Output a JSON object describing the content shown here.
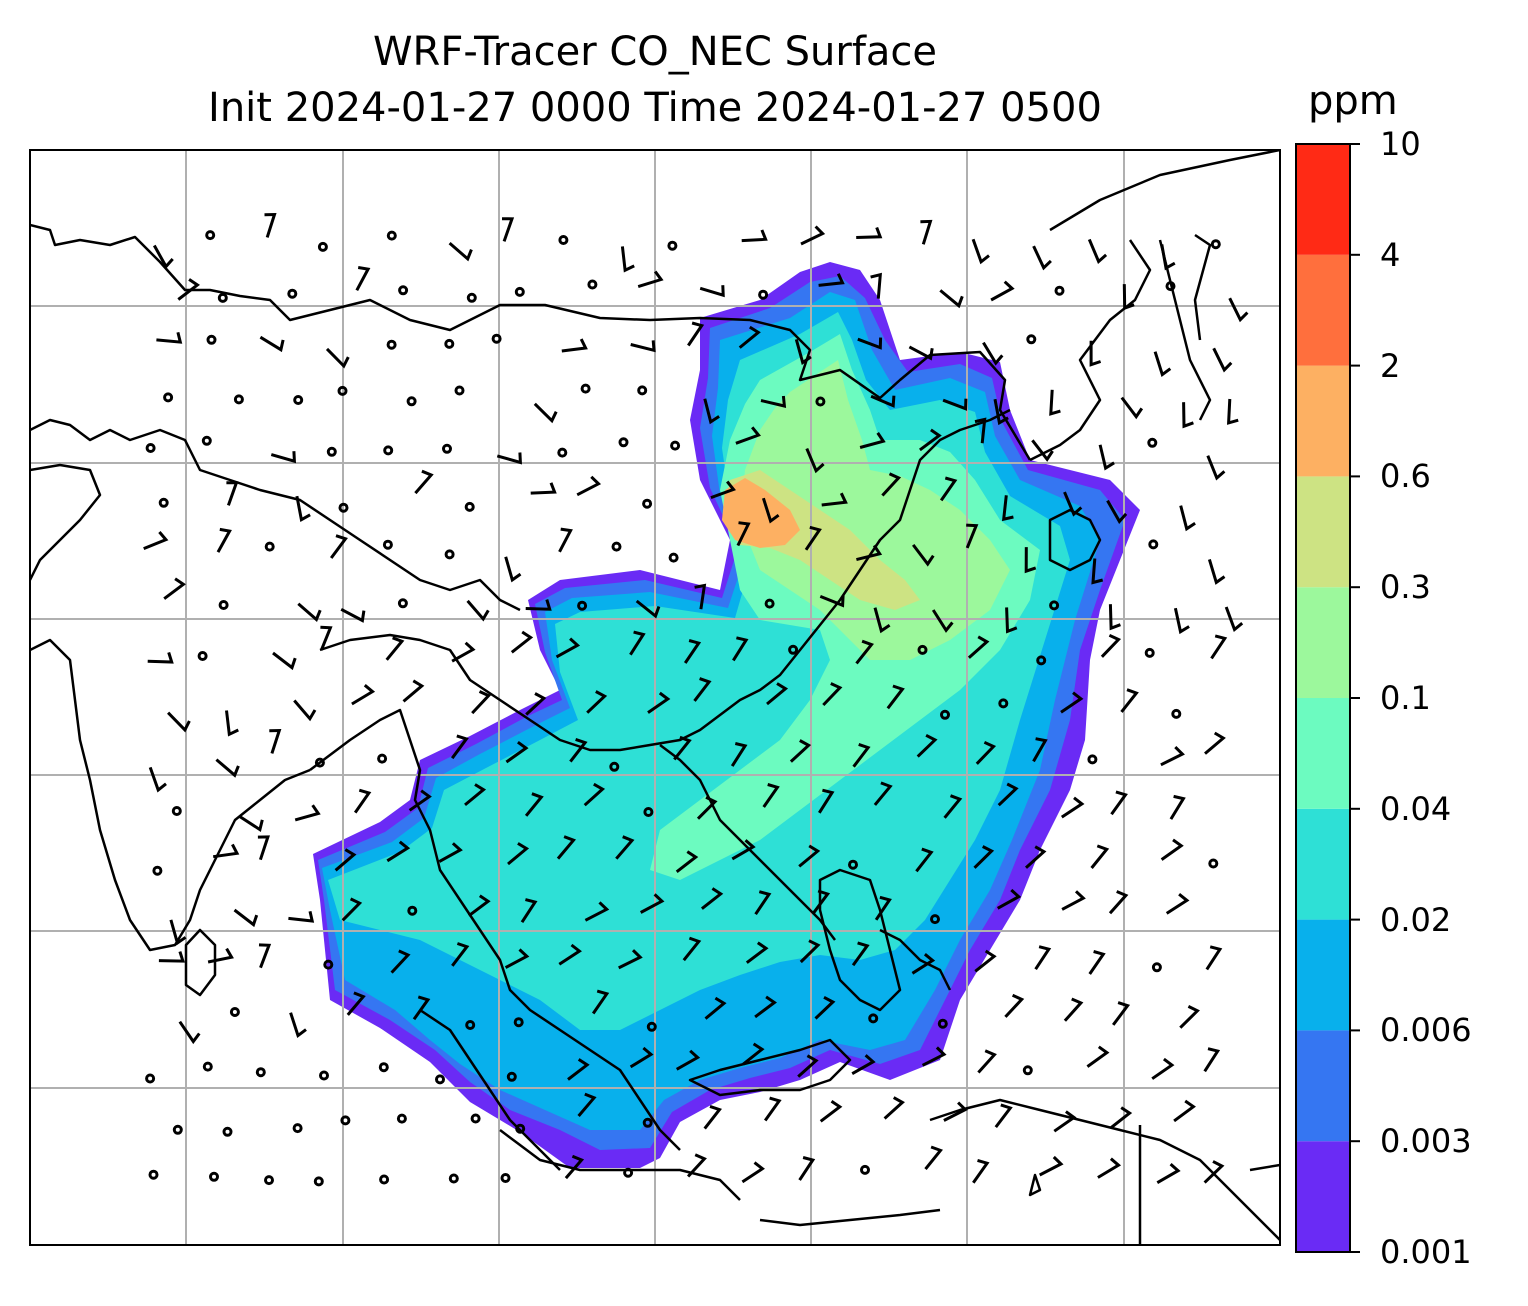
{
  "title_line1": "WRF-Tracer CO_NEC Surface",
  "title_line2": "Init 2024-01-27 0000 Time 2024-01-27 0500",
  "colorbar": {
    "unit": "ppm",
    "levels": [
      "0.001",
      "0.003",
      "0.006",
      "0.02",
      "0.04",
      "0.1",
      "0.3",
      "0.6",
      "2",
      "4",
      "10"
    ],
    "colors": [
      "#6a2bf5",
      "#3576f2",
      "#08b0ec",
      "#2ee0d6",
      "#6cfbc0",
      "#9cf89c",
      "#cde383",
      "#fdb062",
      "#ff6f3d",
      "#ff2a15"
    ]
  },
  "map": {
    "gridlines": "on",
    "gridline_color": "#b0b0b0",
    "coastline_color": "#000000",
    "overlay": "wind barbs"
  }
}
